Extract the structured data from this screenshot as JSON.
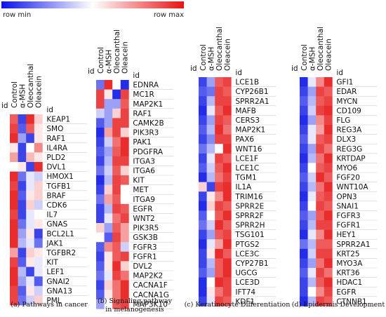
{
  "legend": {
    "min_label": "row min",
    "max_label": "row max",
    "min_color": "#0a14e6",
    "max_color": "#e61414"
  },
  "chart_data": [
    {
      "type": "heatmap",
      "caption": "(a) Pathways in cancer",
      "id_label": "id",
      "columns": [
        "Control",
        "α-MSH",
        "Oleocanthal",
        "Oleacein"
      ],
      "rows": [
        "KEAP1",
        "SMO",
        "RAF1",
        "IL4RA",
        "PLD2",
        "DVL1",
        "HMOX1",
        "TGFB1",
        "BRAF",
        "CDK6",
        "IL7",
        "GNAS",
        "BCL2L1",
        "JAK1",
        "TGFBR2",
        "KIT",
        "LEF1",
        "GNAI2",
        "GNA13",
        "PML"
      ],
      "values": [
        [
          0.85,
          0.1,
          0.95,
          0.6
        ],
        [
          0.9,
          0.15,
          0.85,
          0.55
        ],
        [
          0.95,
          0.3,
          0.1,
          0.55
        ],
        [
          0.55,
          0.1,
          0.5,
          0.75
        ],
        [
          0.7,
          0.1,
          0.65,
          0.55
        ],
        [
          0.5,
          0.55,
          0.1,
          0.95
        ],
        [
          0.95,
          0.2,
          0.45,
          0.4
        ],
        [
          0.9,
          0.1,
          0.45,
          0.6
        ],
        [
          0.95,
          0.15,
          0.55,
          0.6
        ],
        [
          0.95,
          0.1,
          0.6,
          0.4
        ],
        [
          0.9,
          0.1,
          0.45,
          0.5
        ],
        [
          0.95,
          0.2,
          0.45,
          0.55
        ],
        [
          0.95,
          0.3,
          0.55,
          0.1
        ],
        [
          0.95,
          0.35,
          0.45,
          0.2
        ],
        [
          0.7,
          0.1,
          0.6,
          0.55
        ],
        [
          0.9,
          0.15,
          0.55,
          0.45
        ],
        [
          0.95,
          0.35,
          0.1,
          0.45
        ],
        [
          0.95,
          0.3,
          0.45,
          0.15
        ],
        [
          0.9,
          0.15,
          0.55,
          0.4
        ],
        [
          0.9,
          0.2,
          0.4,
          0.6
        ]
      ]
    },
    {
      "type": "heatmap",
      "caption": "(b) Signaling pathway in melanogenesis",
      "caption_lines": [
        "(b) Signaling pathway",
        "in melanogenesis"
      ],
      "id_label": "id",
      "columns": [
        "Control",
        "α-MSH",
        "Oleocanthal",
        "Oleacein"
      ],
      "rows": [
        "EDNRA",
        "MC1R",
        "MAP2K1",
        "RAF1",
        "CAMK2B",
        "PIK3R3",
        "PAK1",
        "PDGFRA",
        "ITGA3",
        "ITGA6",
        "KIT",
        "MET",
        "ITGA9",
        "EGFR",
        "WNT2",
        "PIK3R5",
        "GSK3B",
        "FGFR3",
        "FGFR1",
        "DVL2",
        "MAP2K2",
        "CACNA1F",
        "CACNA1G",
        "MAP3K10"
      ],
      "values": [
        [
          0.2,
          0.95,
          0.5,
          0.05
        ],
        [
          0.9,
          0.55,
          0.05,
          0.9
        ],
        [
          0.9,
          0.3,
          0.3,
          0.85
        ],
        [
          0.4,
          0.3,
          0.6,
          0.9
        ],
        [
          0.15,
          0.3,
          0.9,
          0.9
        ],
        [
          0.05,
          0.7,
          0.9,
          0.6
        ],
        [
          0.1,
          0.4,
          0.8,
          0.95
        ],
        [
          0.15,
          0.3,
          0.85,
          0.95
        ],
        [
          0.1,
          0.35,
          0.9,
          0.9
        ],
        [
          0.2,
          0.4,
          0.85,
          0.6
        ],
        [
          0.05,
          0.35,
          0.9,
          0.85
        ],
        [
          0.1,
          0.6,
          0.9,
          0.5
        ],
        [
          0.2,
          0.7,
          0.85,
          0.5
        ],
        [
          0.1,
          0.35,
          0.9,
          0.85
        ],
        [
          0.1,
          0.45,
          0.8,
          0.9
        ],
        [
          0.6,
          0.3,
          0.85,
          0.7
        ],
        [
          0.5,
          0.15,
          0.9,
          0.7
        ],
        [
          0.15,
          0.75,
          0.85,
          0.4
        ],
        [
          0.1,
          0.55,
          0.85,
          0.9
        ],
        [
          0.15,
          0.55,
          0.95,
          0.6
        ],
        [
          0.2,
          0.45,
          0.9,
          0.8
        ],
        [
          0.1,
          0.6,
          0.8,
          0.95
        ],
        [
          0.15,
          0.55,
          0.8,
          0.95
        ],
        [
          0.3,
          0.5,
          0.85,
          0.9
        ]
      ]
    },
    {
      "type": "heatmap",
      "caption": "(c) Keratinocyte Differentiation",
      "id_label": "id",
      "columns": [
        "Control",
        "α-MSH",
        "Oleocanthal",
        "Oleacein"
      ],
      "rows": [
        "LCE1B",
        "CYP26B1",
        "SPRR2A1",
        "MAFB",
        "CERS3",
        "MAP2K1",
        "PAX6",
        "WNT16",
        "LCE1F",
        "LCE1C",
        "TGM1",
        "IL1A",
        "TRIM16",
        "SPRR2E",
        "SPRR2F",
        "SPRR2H",
        "TSG101",
        "PTGS2",
        "LCE3C",
        "CYP27B1",
        "UGCG",
        "LCE3D",
        "IFT74",
        "KDF1"
      ],
      "values": [
        [
          0.1,
          0.3,
          0.85,
          0.9
        ],
        [
          0.15,
          0.2,
          0.9,
          0.85
        ],
        [
          0.1,
          0.35,
          0.9,
          0.9
        ],
        [
          0.05,
          0.45,
          0.85,
          0.95
        ],
        [
          0.1,
          0.3,
          0.9,
          0.85
        ],
        [
          0.15,
          0.35,
          0.95,
          0.8
        ],
        [
          0.1,
          0.25,
          0.9,
          0.9
        ],
        [
          0.2,
          0.35,
          0.5,
          0.95
        ],
        [
          0.1,
          0.45,
          0.9,
          0.85
        ],
        [
          0.15,
          0.4,
          0.85,
          0.95
        ],
        [
          0.05,
          0.35,
          0.8,
          0.9
        ],
        [
          0.6,
          0.1,
          0.9,
          0.95
        ],
        [
          0.1,
          0.55,
          0.75,
          0.95
        ],
        [
          0.05,
          0.6,
          0.9,
          0.85
        ],
        [
          0.15,
          0.5,
          0.85,
          0.95
        ],
        [
          0.2,
          0.4,
          0.95,
          0.85
        ],
        [
          0.1,
          0.3,
          0.85,
          0.9
        ],
        [
          0.05,
          0.45,
          0.7,
          0.95
        ],
        [
          0.1,
          0.55,
          0.95,
          0.85
        ],
        [
          0.1,
          0.35,
          0.85,
          0.95
        ],
        [
          0.15,
          0.3,
          0.85,
          0.95
        ],
        [
          0.05,
          0.5,
          0.95,
          0.9
        ],
        [
          0.05,
          0.55,
          0.8,
          0.9
        ],
        [
          0.1,
          0.45,
          0.9,
          0.85
        ]
      ]
    },
    {
      "type": "heatmap",
      "caption": "(d) Epidermis Development",
      "id_label": "id",
      "columns": [
        "Control",
        "α-MSH",
        "Oleocanthal",
        "Oleacein"
      ],
      "rows": [
        "GFI1",
        "EDAR",
        "MYCN",
        "CD109",
        "FLG",
        "REG3A",
        "DLX3",
        "REG3G",
        "KRTDAP",
        "MYO6",
        "FGF20",
        "WNT10A",
        "OPN3",
        "SNAI1",
        "FGFR3",
        "FGFR1",
        "HEY1",
        "SPRR2A1",
        "KRT25",
        "MYO3A",
        "KRT36",
        "HDAC1",
        "EGFR",
        "CTNNB1"
      ],
      "values": [
        [
          0.05,
          0.45,
          0.75,
          0.95
        ],
        [
          0.1,
          0.3,
          0.9,
          0.85
        ],
        [
          0.15,
          0.35,
          0.85,
          0.9
        ],
        [
          0.1,
          0.4,
          0.9,
          0.95
        ],
        [
          0.05,
          0.3,
          0.75,
          0.9
        ],
        [
          0.1,
          0.45,
          0.7,
          0.95
        ],
        [
          0.15,
          0.45,
          0.85,
          0.9
        ],
        [
          0.1,
          0.3,
          0.9,
          0.8
        ],
        [
          0.05,
          0.35,
          0.8,
          0.95
        ],
        [
          0.1,
          0.5,
          0.85,
          0.9
        ],
        [
          0.15,
          0.4,
          0.95,
          0.85
        ],
        [
          0.1,
          0.35,
          0.8,
          0.95
        ],
        [
          0.05,
          0.45,
          0.85,
          0.9
        ],
        [
          0.1,
          0.5,
          0.9,
          0.85
        ],
        [
          0.15,
          0.3,
          0.85,
          0.95
        ],
        [
          0.1,
          0.35,
          0.9,
          0.9
        ],
        [
          0.05,
          0.45,
          0.75,
          0.95
        ],
        [
          0.2,
          0.35,
          0.85,
          0.85
        ],
        [
          0.05,
          0.4,
          0.9,
          0.9
        ],
        [
          0.1,
          0.3,
          0.8,
          0.95
        ],
        [
          0.15,
          0.45,
          0.9,
          0.8
        ],
        [
          0.1,
          0.35,
          0.85,
          0.95
        ],
        [
          0.1,
          0.5,
          0.75,
          0.9
        ],
        [
          0.05,
          0.35,
          0.9,
          0.85
        ]
      ]
    }
  ]
}
